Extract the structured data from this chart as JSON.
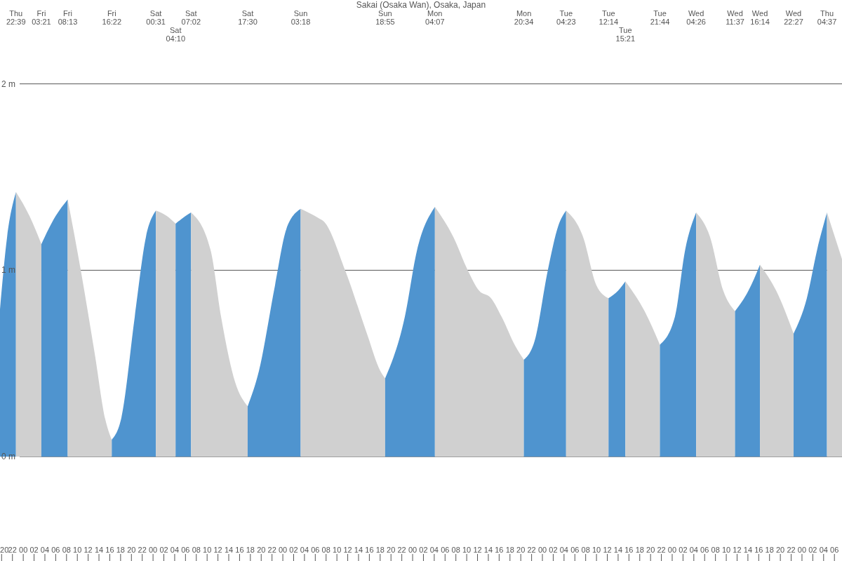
{
  "chart_data": {
    "type": "area",
    "title": "Sakai (Osaka Wan), Osaka, Japan",
    "series": [
      {
        "color": "#4f94cf",
        "x": [
          19.7,
          21.02,
          22.65
        ],
        "values": [
          0.79,
          1.18,
          1.42
        ]
      },
      {
        "color": "#d0d0d0",
        "x": [
          22.65,
          25.17,
          27.35
        ],
        "values": [
          1.42,
          1.29,
          1.14
        ]
      },
      {
        "color": "#4f94cf",
        "x": [
          27.35,
          29.97,
          32.22
        ],
        "values": [
          1.14,
          1.29,
          1.38
        ]
      },
      {
        "color": "#d0d0d0",
        "x": [
          32.22,
          34.64,
          37.23,
          39.17,
          40.37
        ],
        "values": [
          1.38,
          1.0,
          0.55,
          0.2,
          0.09
        ]
      },
      {
        "color": "#4f94cf",
        "x": [
          40.37,
          42.16,
          44.62,
          46.7,
          48.52
        ],
        "values": [
          0.09,
          0.21,
          0.75,
          1.18,
          1.32
        ]
      },
      {
        "color": "#d0d0d0",
        "x": [
          48.52,
          50.59,
          52.17
        ],
        "values": [
          1.32,
          1.29,
          1.25
        ]
      },
      {
        "color": "#4f94cf",
        "x": [
          52.17,
          53.96,
          55.03
        ],
        "values": [
          1.25,
          1.29,
          1.31
        ]
      },
      {
        "color": "#d0d0d0",
        "x": [
          55.03,
          58.63,
          60.58,
          63.17,
          65.5
        ],
        "values": [
          1.31,
          1.11,
          0.75,
          0.4,
          0.27
        ]
      },
      {
        "color": "#4f94cf",
        "x": [
          65.5,
          67.58,
          70.56,
          72.64,
          75.3
        ],
        "values": [
          0.27,
          0.46,
          0.92,
          1.22,
          1.33
        ]
      },
      {
        "color": "#d0d0d0",
        "x": [
          75.3,
          78.6,
          79.64,
          83.53,
          87.55,
          90.02,
          90.92
        ],
        "values": [
          1.33,
          1.28,
          1.26,
          1.0,
          0.66,
          0.46,
          0.42
        ]
      },
      {
        "color": "#4f94cf",
        "x": [
          90.92,
          94.56,
          96.76,
          100.12
        ],
        "values": [
          0.42,
          0.75,
          1.1,
          1.34
        ]
      },
      {
        "color": "#d0d0d0",
        "x": [
          100.12,
          103.5,
          106.2,
          108.3,
          110.5,
          112.46,
          115.05,
          116.57
        ],
        "values": [
          1.34,
          1.18,
          1.0,
          0.89,
          0.85,
          0.75,
          0.59,
          0.52
        ]
      },
      {
        "color": "#4f94cf",
        "x": [
          116.57,
          118.55,
          121.0,
          122.96,
          124.38
        ],
        "values": [
          0.52,
          0.62,
          1.0,
          1.24,
          1.32
        ]
      },
      {
        "color": "#d0d0d0",
        "x": [
          124.38,
          127.5,
          129.97,
          132.23
        ],
        "values": [
          1.32,
          1.18,
          0.92,
          0.85
        ]
      },
      {
        "color": "#4f94cf",
        "x": [
          132.23,
          134.0,
          135.35
        ],
        "values": [
          0.85,
          0.89,
          0.94
        ]
      },
      {
        "color": "#d0d0d0",
        "x": [
          135.35,
          138.9,
          141.73
        ],
        "values": [
          0.94,
          0.78,
          0.6
        ]
      },
      {
        "color": "#4f94cf",
        "x": [
          141.73,
          144.5,
          146.4,
          148.43
        ],
        "values": [
          0.6,
          0.75,
          1.11,
          1.31
        ]
      },
      {
        "color": "#d0d0d0",
        "x": [
          148.43,
          150.98,
          153.44,
          155.62
        ],
        "values": [
          1.31,
          1.18,
          0.89,
          0.78
        ]
      },
      {
        "color": "#4f94cf",
        "x": [
          155.62,
          158.1,
          160.23
        ],
        "values": [
          0.78,
          0.89,
          1.03
        ]
      },
      {
        "color": "#d0d0d0",
        "x": [
          160.23,
          163.23,
          166.45
        ],
        "values": [
          1.03,
          0.89,
          0.66
        ]
      },
      {
        "color": "#4f94cf",
        "x": [
          166.45,
          168.9,
          170.8,
          172.62
        ],
        "values": [
          0.66,
          0.85,
          1.11,
          1.31
        ]
      },
      {
        "color": "#d0d0d0",
        "x": [
          172.62,
          175.4
        ],
        "values": [
          1.31,
          1.06
        ]
      }
    ],
    "xlim": [
      19.7,
      175.4
    ],
    "xticks": [
      {
        "value": 20,
        "label": "20"
      },
      {
        "value": 22,
        "label": "22"
      },
      {
        "value": 24,
        "label": "00"
      },
      {
        "value": 26,
        "label": "02"
      },
      {
        "value": 28,
        "label": "04"
      },
      {
        "value": 30,
        "label": "06"
      },
      {
        "value": 32,
        "label": "08"
      },
      {
        "value": 34,
        "label": "10"
      },
      {
        "value": 36,
        "label": "12"
      },
      {
        "value": 38,
        "label": "14"
      },
      {
        "value": 40,
        "label": "16"
      },
      {
        "value": 42,
        "label": "18"
      },
      {
        "value": 44,
        "label": "20"
      },
      {
        "value": 46,
        "label": "22"
      },
      {
        "value": 48,
        "label": "00"
      },
      {
        "value": 50,
        "label": "02"
      },
      {
        "value": 52,
        "label": "04"
      },
      {
        "value": 54,
        "label": "06"
      },
      {
        "value": 56,
        "label": "08"
      },
      {
        "value": 58,
        "label": "10"
      },
      {
        "value": 60,
        "label": "12"
      },
      {
        "value": 62,
        "label": "14"
      },
      {
        "value": 64,
        "label": "16"
      },
      {
        "value": 66,
        "label": "18"
      },
      {
        "value": 68,
        "label": "20"
      },
      {
        "value": 70,
        "label": "22"
      },
      {
        "value": 72,
        "label": "00"
      },
      {
        "value": 74,
        "label": "02"
      },
      {
        "value": 76,
        "label": "04"
      },
      {
        "value": 78,
        "label": "06"
      },
      {
        "value": 80,
        "label": "08"
      },
      {
        "value": 82,
        "label": "10"
      },
      {
        "value": 84,
        "label": "12"
      },
      {
        "value": 86,
        "label": "14"
      },
      {
        "value": 88,
        "label": "16"
      },
      {
        "value": 90,
        "label": "18"
      },
      {
        "value": 92,
        "label": "20"
      },
      {
        "value": 94,
        "label": "22"
      },
      {
        "value": 96,
        "label": "00"
      },
      {
        "value": 98,
        "label": "02"
      },
      {
        "value": 100,
        "label": "04"
      },
      {
        "value": 102,
        "label": "06"
      },
      {
        "value": 104,
        "label": "08"
      },
      {
        "value": 106,
        "label": "10"
      },
      {
        "value": 108,
        "label": "12"
      },
      {
        "value": 110,
        "label": "14"
      },
      {
        "value": 112,
        "label": "16"
      },
      {
        "value": 114,
        "label": "18"
      },
      {
        "value": 116,
        "label": "20"
      },
      {
        "value": 118,
        "label": "22"
      },
      {
        "value": 120,
        "label": "00"
      },
      {
        "value": 122,
        "label": "02"
      },
      {
        "value": 124,
        "label": "04"
      },
      {
        "value": 126,
        "label": "06"
      },
      {
        "value": 128,
        "label": "08"
      },
      {
        "value": 130,
        "label": "10"
      },
      {
        "value": 132,
        "label": "12"
      },
      {
        "value": 134,
        "label": "14"
      },
      {
        "value": 136,
        "label": "16"
      },
      {
        "value": 138,
        "label": "18"
      },
      {
        "value": 140,
        "label": "20"
      },
      {
        "value": 142,
        "label": "22"
      },
      {
        "value": 144,
        "label": "00"
      },
      {
        "value": 146,
        "label": "02"
      },
      {
        "value": 148,
        "label": "04"
      },
      {
        "value": 150,
        "label": "06"
      },
      {
        "value": 152,
        "label": "08"
      },
      {
        "value": 154,
        "label": "10"
      },
      {
        "value": 156,
        "label": "12"
      },
      {
        "value": 158,
        "label": "14"
      },
      {
        "value": 160,
        "label": "16"
      },
      {
        "value": 162,
        "label": "18"
      },
      {
        "value": 164,
        "label": "20"
      },
      {
        "value": 166,
        "label": "22"
      },
      {
        "value": 168,
        "label": "00"
      },
      {
        "value": 170,
        "label": "02"
      },
      {
        "value": 172,
        "label": "04"
      },
      {
        "value": 174,
        "label": "06"
      }
    ],
    "annotations": [
      "Thu 22:39",
      "Fri 03:21",
      "Fri 08:13",
      "Fri 16:22",
      "Sat 00:31",
      "Sat 04:10",
      "Sat 07:02",
      "Sat 17:30",
      "Sun 03:18",
      "Sun 18:55",
      "Mon 04:07",
      "Mon 20:34",
      "Tue 04:23",
      "Tue 12:14",
      "Tue 15:21",
      "Tue 21:44",
      "Wed 04:26",
      "Wed 11:37",
      "Wed 16:14",
      "Wed 22:27",
      "Thu 04:37"
    ],
    "ylim": [
      -0.56,
      2.45
    ],
    "yticks": [
      {
        "value": 0,
        "label": "0 m"
      },
      {
        "value": 1,
        "label": "1 m"
      },
      {
        "value": 2,
        "label": "2 m"
      }
    ],
    "grid": "y",
    "legend": false
  }
}
